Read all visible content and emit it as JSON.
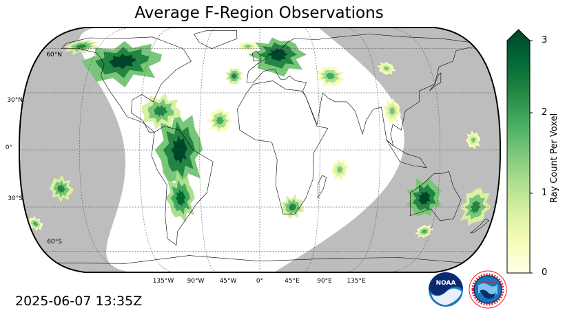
{
  "title": "Average F-Region Observations",
  "timestamp": "2025-06-07 13:35Z",
  "map": {
    "projection": "robinson",
    "gridlines": true,
    "night_fill_color": "#bdbdbd",
    "lat_labels": [
      "60°N",
      "30°N",
      "0°",
      "30°S",
      "60°S"
    ],
    "lon_labels": [
      "135°W",
      "90°W",
      "45°W",
      "0°",
      "45°E",
      "90°E",
      "135°E"
    ]
  },
  "colorbar": {
    "label": "Ray Count Per Voxel",
    "ticks": [
      "0",
      "1",
      "2",
      "3"
    ],
    "min": 0,
    "max": 3,
    "extend": "max",
    "colormap": "YlGn",
    "colors": [
      "#ffffe5",
      "#f7fcb9",
      "#d9f0a3",
      "#addd8e",
      "#78c679",
      "#41ab5d",
      "#238443",
      "#006837",
      "#004529"
    ]
  },
  "logos": [
    {
      "name": "noaa-logo",
      "text": "NOAA"
    },
    {
      "name": "national-weather-service-logo",
      "text": "NATIONAL WEATHER SERVICE"
    }
  ]
}
